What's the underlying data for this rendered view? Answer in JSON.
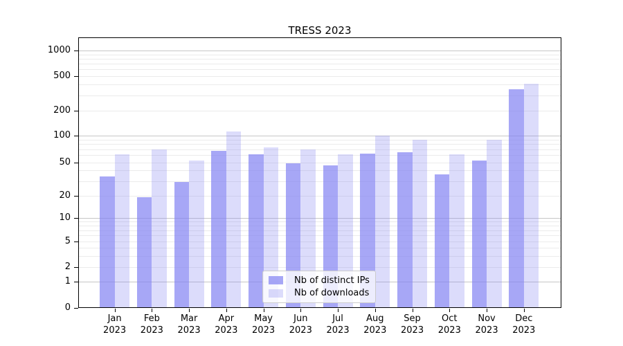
{
  "chart_data": {
    "type": "bar",
    "title": "TRESS 2023",
    "months": [
      "Jan",
      "Feb",
      "Mar",
      "Apr",
      "May",
      "Jun",
      "Jul",
      "Aug",
      "Sep",
      "Oct",
      "Nov",
      "Dec"
    ],
    "year": "2023",
    "series": [
      {
        "name": "Nb of distinct IPs",
        "color": "rgba(130,130,242,0.7)",
        "values": [
          34,
          19,
          29,
          67,
          62,
          49,
          46,
          63,
          65,
          36,
          52,
          355
        ]
      },
      {
        "name": "Nb of downloads",
        "color": "rgba(130,130,242,0.28)",
        "values": [
          62,
          70,
          52,
          112,
          74,
          70,
          62,
          100,
          90,
          62,
          90,
          405
        ]
      }
    ],
    "y_axis": {
      "scale": "symlog",
      "ticks": [
        0,
        1,
        2,
        5,
        10,
        20,
        50,
        100,
        200,
        500,
        1000
      ],
      "range": [
        0,
        1400
      ]
    },
    "legend": {
      "position": "lower center"
    },
    "grid": true
  }
}
